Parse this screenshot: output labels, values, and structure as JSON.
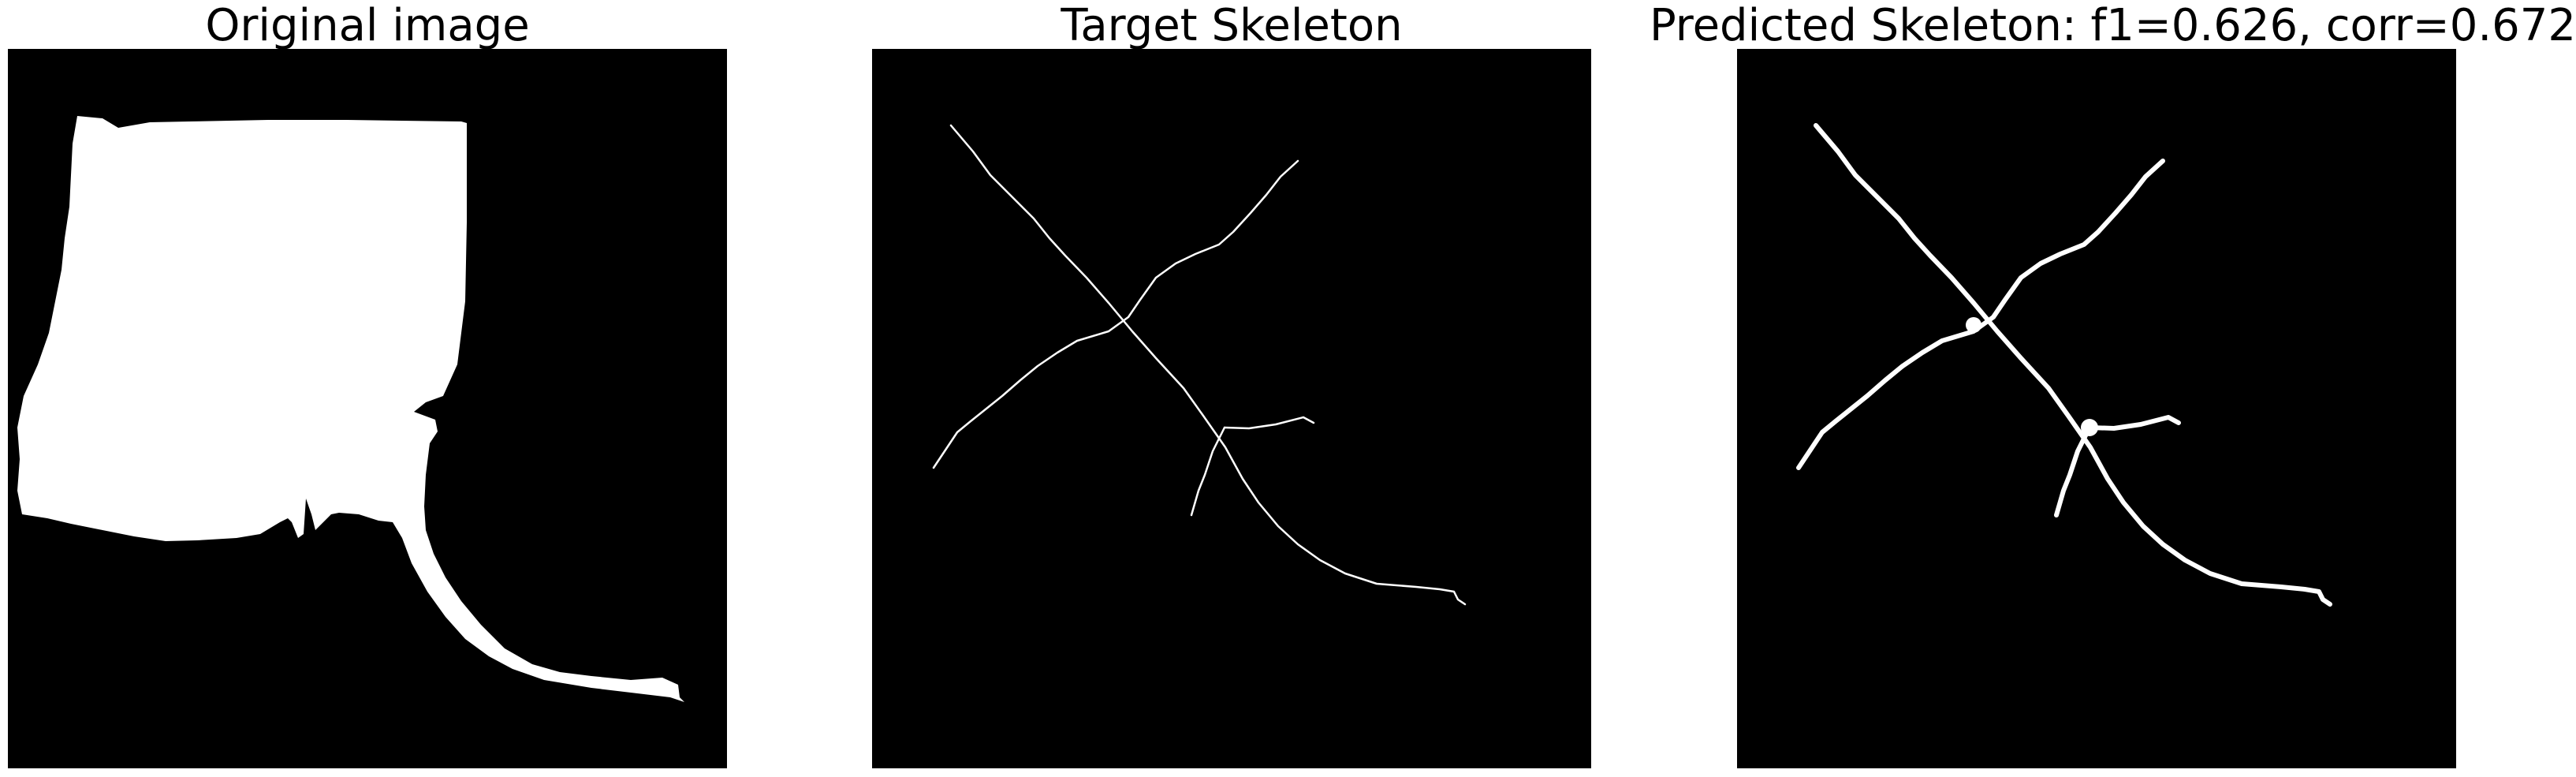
{
  "panels": [
    {
      "title": "Original image",
      "content": "binary-mask"
    },
    {
      "title": "Target Skeleton",
      "content": "thin-skeleton-lines"
    },
    {
      "title": "Predicted Skeleton: f1=0.626, corr=0.672",
      "content": "thick-skeleton-lines"
    }
  ],
  "colors": {
    "background": "#ffffff",
    "panel_fill": "#000000",
    "foreground": "#ffffff",
    "title_text": "#000000"
  }
}
